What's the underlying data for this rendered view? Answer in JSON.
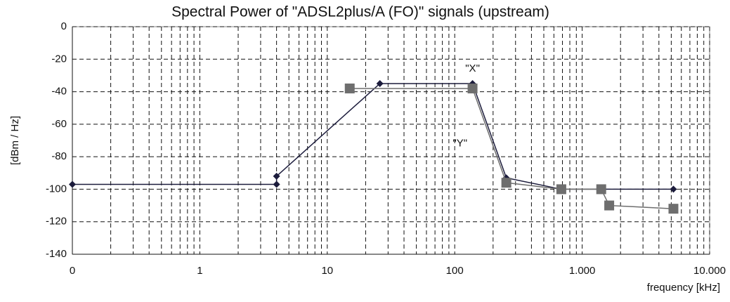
{
  "chart_data": {
    "type": "line",
    "title": "Spectral Power of \"ADSL2plus/A (FO)\" signals (upstream)",
    "xlabel": "frequency [kHz]",
    "ylabel": "[dBm / Hz]",
    "log_x": true,
    "grid": true,
    "xlim": [
      0.1,
      10000
    ],
    "xticks": [
      {
        "value": 0.1,
        "label": "0"
      },
      1,
      10,
      100,
      {
        "value": 1000,
        "label": "1.000"
      },
      {
        "value": 10000,
        "label": "10.000"
      }
    ],
    "ylim": [
      -140,
      0
    ],
    "yticks": [
      0,
      -20,
      -40,
      -60,
      -80,
      -100,
      -120,
      -140
    ],
    "series": [
      {
        "color": "#1c1c3c",
        "marker": "diamond",
        "x": [
          0.1,
          4,
          4,
          25.875,
          138,
          254,
          686,
          5200
        ],
        "values": [
          -97,
          -97,
          -92,
          -35,
          -35,
          -93,
          -100,
          -100
        ]
      },
      {
        "color": "#6e6e6e",
        "marker": "square",
        "x": [
          15,
          138,
          254,
          686,
          1411,
          1630,
          5200
        ],
        "values": [
          -38,
          -38,
          -96,
          -100,
          -100,
          -110,
          -112
        ]
      }
    ],
    "annotations": [
      {
        "text": "\"X\"",
        "x": 138,
        "y": -26
      },
      {
        "text": "\"Y\"",
        "x": 110,
        "y": -72
      }
    ]
  }
}
